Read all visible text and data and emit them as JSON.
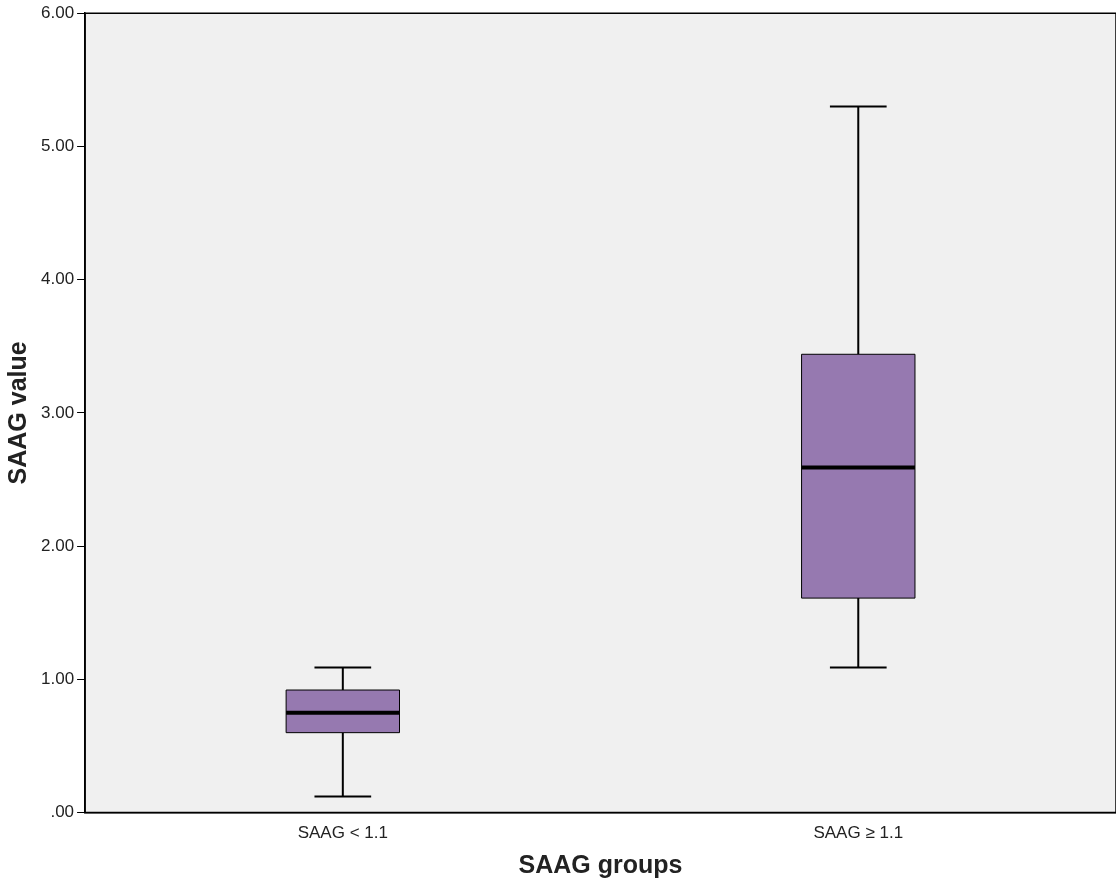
{
  "chart_data": {
    "type": "box",
    "xlabel": "SAAG groups",
    "ylabel": "SAAG value",
    "categories": [
      "SAAG < 1.1",
      "SAAG ≥ 1.1"
    ],
    "color": "#9679b0",
    "boxes": [
      {
        "low": 0.12,
        "q1": 0.6,
        "median": 0.75,
        "q3": 0.92,
        "high": 1.09
      },
      {
        "low": 1.09,
        "q1": 1.61,
        "median": 2.59,
        "q3": 3.44,
        "high": 5.3
      }
    ],
    "ylim": [
      0,
      6
    ],
    "yticks": [
      {
        "value": 0,
        "label": ".00"
      },
      {
        "value": 1,
        "label": "1.00"
      },
      {
        "value": 2,
        "label": "2.00"
      },
      {
        "value": 3,
        "label": "3.00"
      },
      {
        "value": 4,
        "label": "4.00"
      },
      {
        "value": 5,
        "label": "5.00"
      },
      {
        "value": 6,
        "label": "6.00"
      }
    ],
    "grid": false,
    "legend": false
  }
}
